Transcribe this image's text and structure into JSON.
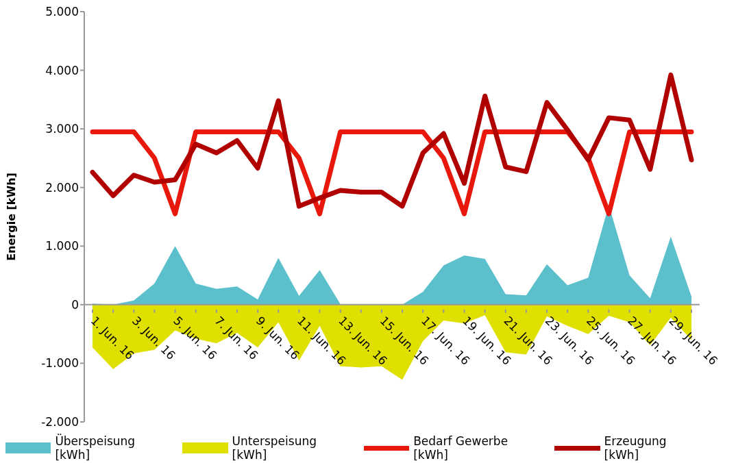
{
  "chart_data": {
    "type": "area",
    "ylabel": "Energie [kWh]",
    "categories": [
      "1. Jun. 16",
      null,
      "3. Jun. 16",
      null,
      "5. Jun. 16",
      null,
      "7. Jun. 16",
      null,
      "9. Jun. 16",
      null,
      "11. Jun. 16",
      null,
      "13. Jun. 16",
      null,
      "15. Jun. 16",
      null,
      "17. Jun. 16",
      null,
      "19. Jun. 16",
      null,
      "21. Jun. 16",
      null,
      "23. Jun. 16",
      null,
      "25. Jun. 16",
      null,
      "27. Jun. 16",
      null,
      "29. Jun. 16",
      null
    ],
    "series": [
      {
        "name": "Überspeisung [kWh]",
        "color": "#5bc0cb",
        "values": [
          20,
          0,
          70,
          360,
          1000,
          360,
          270,
          310,
          90,
          800,
          150,
          590,
          10,
          10,
          0,
          0,
          220,
          670,
          840,
          780,
          180,
          160,
          690,
          330,
          460,
          1700,
          500,
          110,
          1160,
          140
        ]
      },
      {
        "name": "Unterspeisung [kWh]",
        "color": "#e0e000",
        "values": [
          -730,
          -1100,
          -830,
          -770,
          -440,
          -580,
          -660,
          -480,
          -730,
          -300,
          -950,
          -360,
          -1050,
          -1070,
          -1050,
          -1280,
          -620,
          -270,
          -320,
          -180,
          -810,
          -850,
          -200,
          -360,
          -500,
          -190,
          -300,
          -690,
          -220,
          -600
        ]
      },
      {
        "name": "Bedarf Gewerbe  [kWh]",
        "type": "line",
        "color": "#e8180c",
        "values": [
          2950,
          2950,
          2950,
          2500,
          1550,
          2950,
          2950,
          2950,
          2950,
          2950,
          2500,
          1550,
          2950,
          2950,
          2950,
          2950,
          2950,
          2500,
          1550,
          2950,
          2950,
          2950,
          2950,
          2950,
          2500,
          1550,
          2950,
          2950,
          2950,
          2950
        ]
      },
      {
        "name": "Erzeugung [kWh]",
        "type": "line",
        "color": "#b00000",
        "values": [
          2260,
          1860,
          2210,
          2090,
          2130,
          2740,
          2590,
          2800,
          2330,
          3480,
          1680,
          1820,
          1950,
          1920,
          1920,
          1680,
          2590,
          2920,
          2070,
          3560,
          2350,
          2270,
          3450,
          2980,
          2470,
          3190,
          3150,
          2310,
          3920,
          2470
        ]
      }
    ],
    "ylim": [
      -2000,
      5000
    ],
    "yticks": [
      {
        "value": -2000,
        "label": "-2.000"
      },
      {
        "value": -1000,
        "label": "-1.000"
      },
      {
        "value": 0,
        "label": "0"
      },
      {
        "value": 1000,
        "label": "1.000"
      },
      {
        "value": 2000,
        "label": "2.000"
      },
      {
        "value": 3000,
        "label": "3.000"
      },
      {
        "value": 4000,
        "label": "4.000"
      },
      {
        "value": 5000,
        "label": "5.000"
      }
    ],
    "grid": false,
    "legend": "bottom",
    "marker": "none",
    "line_style": "solid"
  }
}
